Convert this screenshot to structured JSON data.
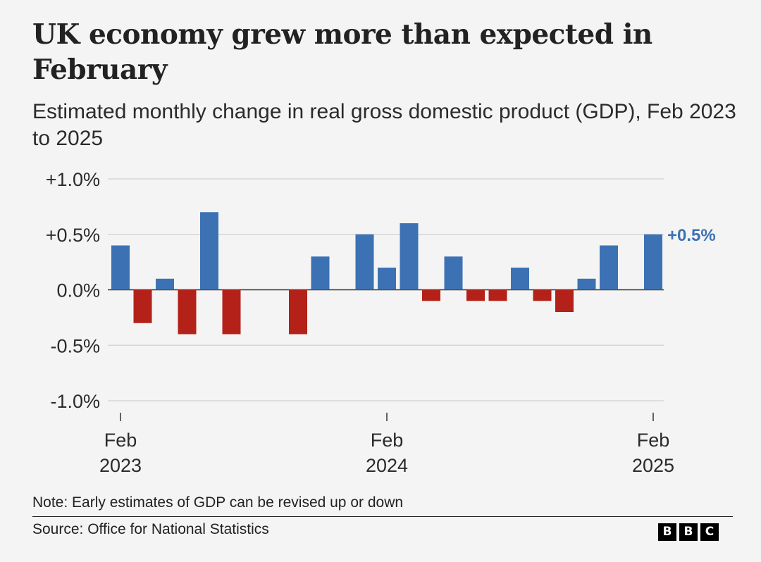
{
  "title": "UK economy grew more than expected in February",
  "subtitle": "Estimated monthly change in real gross domestic product (GDP), Feb 2023 to 2025",
  "note": "Note: Early estimates of GDP can be revised up or down",
  "source": "Source: Office for National Statistics",
  "logo": [
    "B",
    "B",
    "C"
  ],
  "colors": {
    "positive": "#3c72b4",
    "negative": "#b32118",
    "grid": "#d6d6d6",
    "axis": "#333333",
    "label_highlight": "#3c72b4"
  },
  "chart_data": {
    "type": "bar",
    "categories": [
      "Feb 2023",
      "Mar 2023",
      "Apr 2023",
      "May 2023",
      "Jun 2023",
      "Jul 2023",
      "Aug 2023",
      "Sep 2023",
      "Oct 2023",
      "Nov 2023",
      "Dec 2023",
      "Jan 2024",
      "Feb 2024",
      "Mar 2024",
      "Apr 2024",
      "May 2024",
      "Jun 2024",
      "Jul 2024",
      "Aug 2024",
      "Sep 2024",
      "Oct 2024",
      "Nov 2024",
      "Dec 2024",
      "Jan 2025",
      "Feb 2025"
    ],
    "values": [
      0.4,
      -0.3,
      0.1,
      -0.4,
      0.7,
      -0.4,
      0.0,
      0.0,
      -0.4,
      0.3,
      0.0,
      0.5,
      0.2,
      0.6,
      -0.1,
      0.3,
      -0.1,
      -0.1,
      0.2,
      -0.1,
      -0.2,
      0.1,
      0.4,
      0.0,
      0.5
    ],
    "ylim": [
      -1.0,
      1.0
    ],
    "yticks": [
      1.0,
      0.5,
      0.0,
      -0.5,
      -1.0
    ],
    "ytick_labels": [
      "+1.0%",
      "+0.5%",
      "0.0%",
      "-0.5%",
      "-1.0%"
    ],
    "xtick_labels": [
      {
        "index": 0,
        "lines": [
          "Feb",
          "2023"
        ]
      },
      {
        "index": 12,
        "lines": [
          "Feb",
          "2024"
        ]
      },
      {
        "index": 24,
        "lines": [
          "Feb",
          "2025"
        ]
      }
    ],
    "annotation": {
      "index": 24,
      "text": "+0.5%"
    },
    "grid": true
  }
}
